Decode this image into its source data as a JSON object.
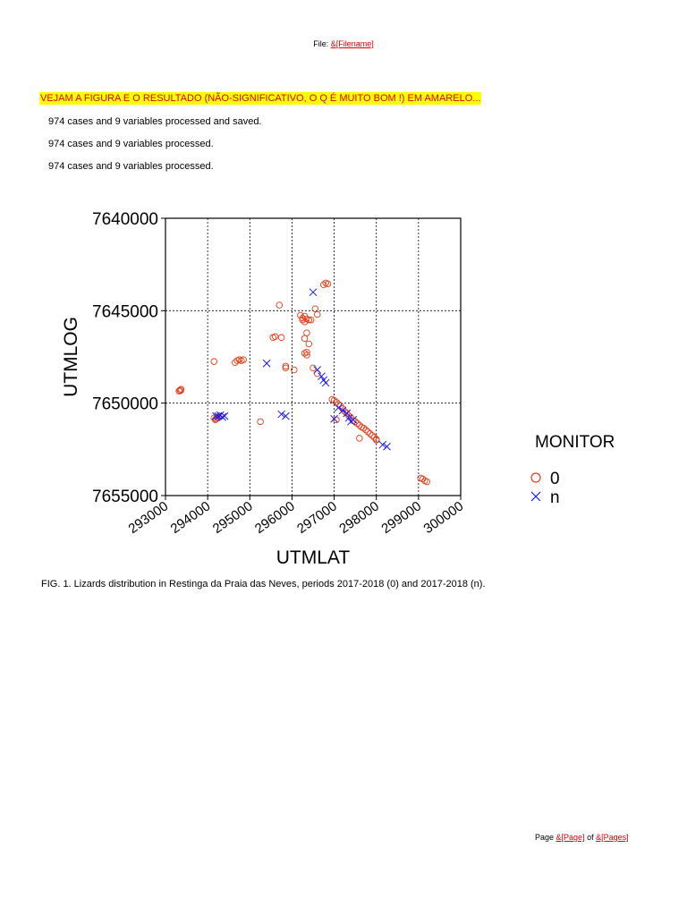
{
  "header": {
    "prefix": "File: ",
    "field": "&[Filename]"
  },
  "note": "VEJAM A FIGURA E O RESULTADO (NÃO-SIGNIFICATIVO, O Q É MUITO BOM !) EM AMARELO...",
  "lines": [
    "974 cases and 9 variables processed and saved.",
    "974 cases and 9 variables processed.",
    "974 cases and 9 variables processed."
  ],
  "caption": "FIG. 1. Lizards distribution in Restinga da Praia das Neves, periods 2017-2018 (0) and 2017-2018 (n).",
  "footer": {
    "prefix": "Page ",
    "page_field": "&[Page]",
    "middle": " of ",
    "pages_field": "&[Pages]"
  },
  "colors": {
    "series_0": "#e0401a",
    "series_n": "#1a1aee",
    "highlight": "#ffff00",
    "field_text": "#e00000"
  },
  "chart_data": {
    "type": "scatter",
    "xlabel": "UTMLAT",
    "ylabel": "UTMLOG",
    "xlim": [
      293000,
      300000
    ],
    "ylim": [
      7640000,
      7655000
    ],
    "y_inverted": true,
    "grid": true,
    "x_ticks": [
      "293000",
      "294000",
      "295000",
      "296000",
      "297000",
      "298000",
      "299000",
      "300000"
    ],
    "y_ticks": [
      "7640000",
      "7645000",
      "7650000",
      "7655000"
    ],
    "legend": {
      "title": "MONITOR",
      "position": "right"
    },
    "series": [
      {
        "name": "0",
        "marker": "circle",
        "points": [
          [
            293340,
            7649300
          ],
          [
            293370,
            7649250
          ],
          [
            293320,
            7649350
          ],
          [
            293360,
            7649320
          ],
          [
            294150,
            7650800
          ],
          [
            294200,
            7650850
          ],
          [
            294250,
            7650800
          ],
          [
            294180,
            7650900
          ],
          [
            294220,
            7650750
          ],
          [
            294150,
            7647750
          ],
          [
            294700,
            7647700
          ],
          [
            294750,
            7647650
          ],
          [
            294800,
            7647700
          ],
          [
            294650,
            7647800
          ],
          [
            294850,
            7647650
          ],
          [
            295250,
            7651000
          ],
          [
            295550,
            7646450
          ],
          [
            295600,
            7646400
          ],
          [
            295750,
            7646450
          ],
          [
            295700,
            7644700
          ],
          [
            295850,
            7648000
          ],
          [
            295850,
            7648100
          ],
          [
            296050,
            7648200
          ],
          [
            296250,
            7645400
          ],
          [
            296300,
            7645300
          ],
          [
            296350,
            7645450
          ],
          [
            296400,
            7645500
          ],
          [
            296250,
            7645500
          ],
          [
            296300,
            7645600
          ],
          [
            296350,
            7646200
          ],
          [
            296300,
            7646500
          ],
          [
            296400,
            7646800
          ],
          [
            296300,
            7647300
          ],
          [
            296350,
            7647400
          ],
          [
            296350,
            7647250
          ],
          [
            296500,
            7648100
          ],
          [
            296600,
            7648400
          ],
          [
            296200,
            7645250
          ],
          [
            296550,
            7644900
          ],
          [
            296600,
            7645200
          ],
          [
            296450,
            7645500
          ],
          [
            296800,
            7643500
          ],
          [
            296750,
            7643600
          ],
          [
            296850,
            7643550
          ],
          [
            296950,
            7649800
          ],
          [
            297000,
            7649850
          ],
          [
            297050,
            7649950
          ],
          [
            297100,
            7650050
          ],
          [
            297150,
            7650150
          ],
          [
            297200,
            7650300
          ],
          [
            297250,
            7650450
          ],
          [
            297300,
            7650550
          ],
          [
            297350,
            7650700
          ],
          [
            297400,
            7650800
          ],
          [
            297450,
            7650950
          ],
          [
            297500,
            7651000
          ],
          [
            297550,
            7651100
          ],
          [
            297600,
            7651200
          ],
          [
            297650,
            7651300
          ],
          [
            297700,
            7651350
          ],
          [
            297750,
            7651450
          ],
          [
            297800,
            7651550
          ],
          [
            297850,
            7651650
          ],
          [
            297900,
            7651750
          ],
          [
            297950,
            7651850
          ],
          [
            298000,
            7651950
          ],
          [
            297050,
            7650900
          ],
          [
            297600,
            7651900
          ],
          [
            298000,
            7652000
          ],
          [
            299050,
            7654050
          ],
          [
            299100,
            7654100
          ],
          [
            299150,
            7654200
          ],
          [
            299200,
            7654250
          ]
        ]
      },
      {
        "name": "n",
        "marker": "x",
        "points": [
          [
            294200,
            7650700
          ],
          [
            294250,
            7650700
          ],
          [
            294300,
            7650650
          ],
          [
            294350,
            7650750
          ],
          [
            294400,
            7650700
          ],
          [
            295400,
            7647850
          ],
          [
            295750,
            7650600
          ],
          [
            295850,
            7650700
          ],
          [
            296500,
            7644000
          ],
          [
            296600,
            7648200
          ],
          [
            296700,
            7648550
          ],
          [
            296750,
            7648750
          ],
          [
            296800,
            7648900
          ],
          [
            297000,
            7650850
          ],
          [
            297100,
            7650250
          ],
          [
            297200,
            7650400
          ],
          [
            297300,
            7650550
          ],
          [
            297350,
            7650800
          ],
          [
            297400,
            7651000
          ],
          [
            297450,
            7650900
          ],
          [
            298150,
            7652250
          ],
          [
            298250,
            7652350
          ]
        ]
      }
    ]
  }
}
